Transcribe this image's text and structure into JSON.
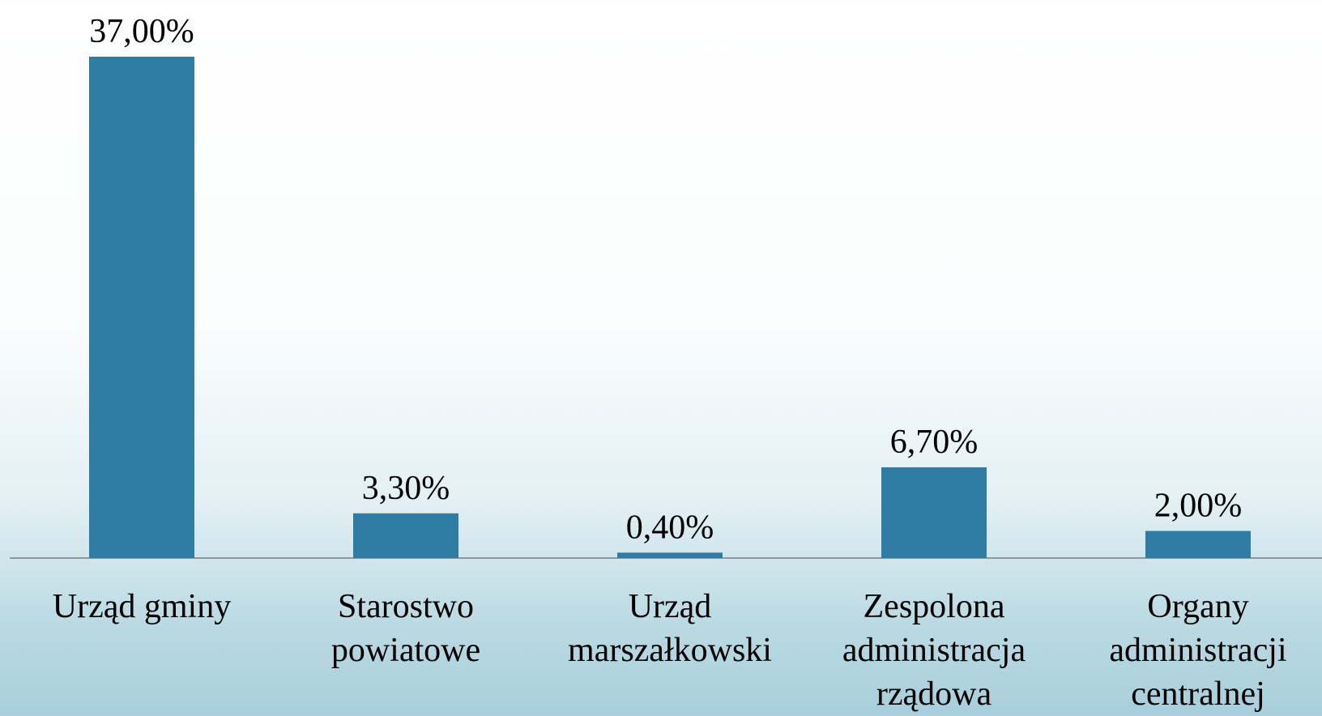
{
  "chart_data": {
    "type": "bar",
    "categories": [
      "Urząd gminy",
      "Starostwo powiatowe",
      "Urząd marszałkowski",
      "Zespolona administracja rządowa",
      "Organy administracji centralnej"
    ],
    "values": [
      37,
      3.3,
      0.4,
      6.7,
      2
    ],
    "value_labels": [
      "37,00%",
      "3,30%",
      "0,40%",
      "6,70%",
      "2,00%"
    ],
    "color": "#2e7ca3"
  }
}
